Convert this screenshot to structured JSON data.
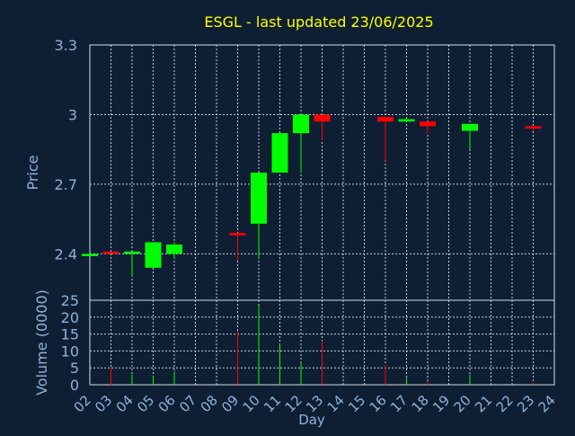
{
  "chart_data": {
    "type": "candlestick",
    "title": "ESGL - last updated 23/06/2025",
    "xlabel": "Day",
    "colors": {
      "background": "#0f1f33",
      "plot_border": "#d8dde5",
      "grid": "#c7ced9",
      "title": "#ffff00",
      "axis_text": "#8fb3d9",
      "up": "#00ff00",
      "down": "#ff0000"
    },
    "price_panel": {
      "ylabel": "Price",
      "ylim": [
        2.2,
        3.3
      ],
      "yticks": [
        2.4,
        2.7,
        3,
        3.3
      ],
      "ytick_labels": [
        "2.4",
        "2.7",
        "3",
        "3.3"
      ],
      "grid": true
    },
    "volume_panel": {
      "ylabel": "Volume (0000)",
      "ylim": [
        0,
        25
      ],
      "yticks": [
        0,
        5,
        10,
        15,
        20,
        25
      ],
      "ytick_labels": [
        "0",
        "5",
        "10",
        "15",
        "20",
        "25"
      ],
      "grid": true
    },
    "x_tick_labels": [
      "02",
      "03",
      "04",
      "05",
      "06",
      "07",
      "08",
      "09",
      "10",
      "11",
      "12",
      "13",
      "14",
      "15",
      "16",
      "17",
      "18",
      "19",
      "20",
      "21",
      "22",
      "23",
      "24"
    ],
    "candles": [
      {
        "x": 0,
        "open": 2.39,
        "high": 2.4,
        "low": 2.39,
        "close": 2.4,
        "volume": 0.3
      },
      {
        "x": 1,
        "open": 2.41,
        "high": 2.41,
        "low": 2.4,
        "close": 2.4,
        "volume": 5
      },
      {
        "x": 2,
        "open": 2.4,
        "high": 2.41,
        "low": 2.3,
        "close": 2.41,
        "volume": 3
      },
      {
        "x": 3,
        "open": 2.34,
        "high": 2.45,
        "low": 2.34,
        "close": 2.45,
        "volume": 2.5
      },
      {
        "x": 4,
        "open": 2.4,
        "high": 2.45,
        "low": 2.38,
        "close": 2.44,
        "volume": 4
      },
      {
        "x": 7,
        "open": 2.49,
        "high": 2.49,
        "low": 2.37,
        "close": 2.48,
        "volume": 16
      },
      {
        "x": 8,
        "open": 2.53,
        "high": 2.75,
        "low": 2.38,
        "close": 2.75,
        "volume": 23.5
      },
      {
        "x": 9,
        "open": 2.75,
        "high": 2.92,
        "low": 2.75,
        "close": 2.92,
        "volume": 12
      },
      {
        "x": 10,
        "open": 2.92,
        "high": 3.0,
        "low": 2.75,
        "close": 3.0,
        "volume": 6.5
      },
      {
        "x": 11,
        "open": 3.0,
        "high": 3.0,
        "low": 2.89,
        "close": 2.97,
        "volume": 13
      },
      {
        "x": 14,
        "open": 2.99,
        "high": 2.99,
        "low": 2.8,
        "close": 2.97,
        "volume": 6
      },
      {
        "x": 15,
        "open": 2.97,
        "high": 2.98,
        "low": 2.97,
        "close": 2.98,
        "volume": 2
      },
      {
        "x": 16,
        "open": 2.97,
        "high": 2.97,
        "low": 2.92,
        "close": 2.95,
        "volume": 1
      },
      {
        "x": 18,
        "open": 2.93,
        "high": 2.96,
        "low": 2.85,
        "close": 2.96,
        "volume": 3
      },
      {
        "x": 21,
        "open": 2.95,
        "high": 2.95,
        "low": 2.93,
        "close": 2.94,
        "volume": 0.5
      }
    ]
  }
}
